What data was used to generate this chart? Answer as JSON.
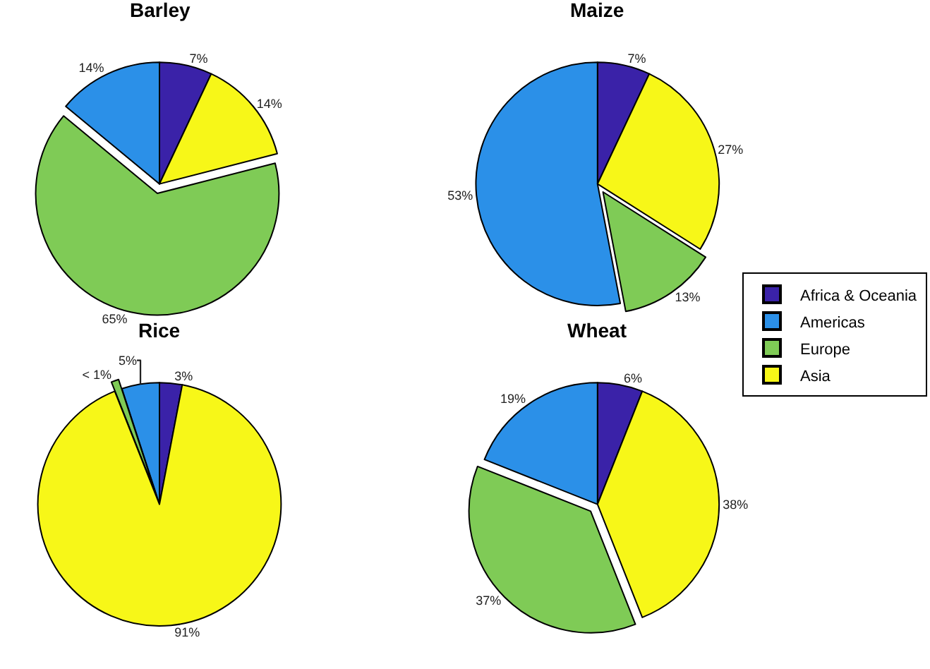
{
  "chart_data": [
    {
      "type": "pie",
      "title": "Barley",
      "categories": [
        "Africa & Oceania",
        "Americas",
        "Europe",
        "Asia"
      ],
      "values": [
        7,
        14,
        65,
        14
      ],
      "value_labels": [
        "7%",
        "14%",
        "65%",
        "14%"
      ],
      "colors": [
        "#3a22a8",
        "#2b90e8",
        "#7fcb56",
        "#f7f718"
      ],
      "legend": "right"
    },
    {
      "type": "pie",
      "title": "Maize",
      "categories": [
        null,
        null,
        null,
        null
      ],
      "values": [
        7,
        53,
        13,
        27
      ],
      "value_labels": [
        "7%",
        "53%",
        "13%",
        "27%"
      ],
      "colors": [
        "#3a22a8",
        "#2b90e8",
        "#7fcb56",
        "#f7f718"
      ]
    },
    {
      "type": "pie",
      "title": "Rice",
      "categories": [
        null,
        null,
        null,
        null
      ],
      "values": [
        3,
        5,
        1,
        91
      ],
      "value_labels": [
        "3%",
        "5%",
        "< 1%",
        "91%"
      ],
      "colors": [
        "#3a22a8",
        "#2b90e8",
        "#7fcb56",
        "#f7f718"
      ]
    },
    {
      "type": "pie",
      "title": "Wheat",
      "categories": [
        null,
        null,
        null,
        null
      ],
      "values": [
        6,
        19,
        37,
        38
      ],
      "value_labels": [
        "6%",
        "19%",
        "37%",
        "38%"
      ],
      "colors": [
        "#3a22a8",
        "#2b90e8",
        "#7fcb56",
        "#f7f718"
      ]
    }
  ]
}
